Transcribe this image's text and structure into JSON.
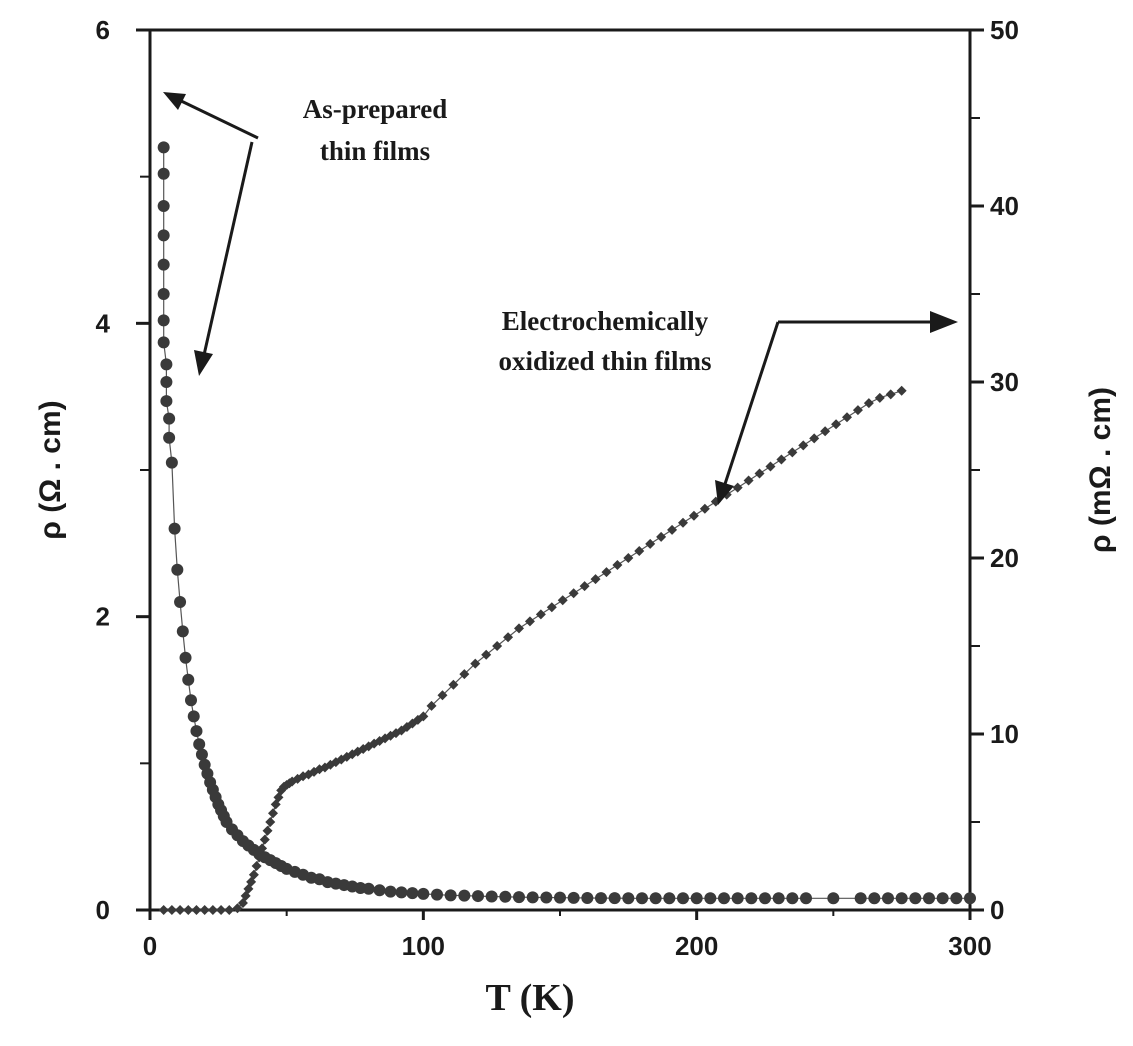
{
  "chart_data": {
    "type": "scatter",
    "xlabel": "T (K)",
    "ylabel_left": "ρ (Ω . cm)",
    "ylabel_right": "ρ (mΩ . cm)",
    "xlim": [
      0,
      300
    ],
    "ylim_left": [
      0,
      6
    ],
    "ylim_right": [
      0,
      50
    ],
    "x_ticks": [
      "0",
      "100",
      "200",
      "300"
    ],
    "y_left_ticks": [
      "0",
      "2",
      "4",
      "6"
    ],
    "y_right_ticks": [
      "0",
      "10",
      "20",
      "30",
      "40",
      "50"
    ],
    "grid": false,
    "colors": {
      "axes": "#1a1a1a",
      "markers": "#3a3a3a",
      "line": "#555555"
    },
    "annotations": [
      {
        "lines": [
          "As-prepared",
          "thin films"
        ],
        "points_to": "left axis and as-prepared curve"
      },
      {
        "lines": [
          "Electrochemically",
          "oxidized thin films"
        ],
        "points_to": "right axis and oxidized curve"
      }
    ],
    "series": [
      {
        "axis": "left",
        "marker": "circle",
        "x": [
          5,
          5,
          5,
          5,
          5,
          5,
          5,
          5,
          6,
          6,
          6,
          7,
          7,
          8,
          9,
          10,
          11,
          12,
          13,
          14,
          15,
          16,
          17,
          18,
          19,
          20,
          21,
          22,
          23,
          24,
          25,
          26,
          27,
          28,
          30,
          32,
          34,
          36,
          38,
          40,
          42,
          44,
          46,
          48,
          50,
          53,
          56,
          59,
          62,
          65,
          68,
          71,
          74,
          77,
          80,
          84,
          88,
          92,
          96,
          100,
          105,
          110,
          115,
          120,
          125,
          130,
          135,
          140,
          145,
          150,
          155,
          160,
          165,
          170,
          175,
          180,
          185,
          190,
          195,
          200,
          205,
          210,
          215,
          220,
          225,
          230,
          235,
          240,
          250,
          260,
          265,
          270,
          275,
          280,
          285,
          290,
          295,
          300
        ],
        "y": [
          5.2,
          5.02,
          4.8,
          4.6,
          4.4,
          4.2,
          4.02,
          3.87,
          3.72,
          3.6,
          3.47,
          3.35,
          3.22,
          3.05,
          2.6,
          2.32,
          2.1,
          1.9,
          1.72,
          1.57,
          1.43,
          1.32,
          1.22,
          1.13,
          1.06,
          0.99,
          0.93,
          0.87,
          0.82,
          0.77,
          0.72,
          0.68,
          0.64,
          0.6,
          0.55,
          0.51,
          0.47,
          0.44,
          0.41,
          0.38,
          0.36,
          0.34,
          0.32,
          0.3,
          0.28,
          0.26,
          0.24,
          0.22,
          0.21,
          0.19,
          0.18,
          0.17,
          0.16,
          0.15,
          0.145,
          0.135,
          0.125,
          0.12,
          0.115,
          0.11,
          0.105,
          0.1,
          0.098,
          0.095,
          0.092,
          0.09,
          0.088,
          0.086,
          0.085,
          0.084,
          0.083,
          0.082,
          0.081,
          0.081,
          0.08,
          0.08,
          0.08,
          0.08,
          0.08,
          0.08,
          0.08,
          0.08,
          0.08,
          0.08,
          0.08,
          0.08,
          0.08,
          0.08,
          0.08,
          0.08,
          0.08,
          0.08,
          0.08,
          0.08,
          0.08,
          0.08,
          0.08,
          0.08
        ]
      },
      {
        "axis": "right",
        "marker": "diamond",
        "x": [
          5,
          8,
          11,
          14,
          17,
          20,
          23,
          26,
          29,
          32,
          34,
          35,
          36,
          37,
          38,
          39,
          40,
          41,
          42,
          43,
          44,
          45,
          46,
          47,
          48,
          49,
          50,
          51,
          52,
          54,
          56,
          58,
          60,
          62,
          64,
          66,
          68,
          70,
          72,
          74,
          76,
          78,
          80,
          82,
          84,
          86,
          88,
          90,
          92,
          94,
          96,
          98,
          100,
          103,
          107,
          111,
          115,
          119,
          123,
          127,
          131,
          135,
          139,
          143,
          147,
          151,
          155,
          159,
          163,
          167,
          171,
          175,
          179,
          183,
          187,
          191,
          195,
          199,
          203,
          207,
          211,
          215,
          219,
          223,
          227,
          231,
          235,
          239,
          243,
          247,
          251,
          255,
          259,
          263,
          267,
          271,
          275
        ],
        "y": [
          0,
          0,
          0,
          0,
          0,
          0,
          0,
          0,
          0,
          0.1,
          0.4,
          0.8,
          1.2,
          1.6,
          2.0,
          2.5,
          3.0,
          3.5,
          4.0,
          4.5,
          5.0,
          5.5,
          6.0,
          6.4,
          6.8,
          7.0,
          7.1,
          7.2,
          7.3,
          7.45,
          7.6,
          7.7,
          7.85,
          8.0,
          8.1,
          8.25,
          8.4,
          8.55,
          8.7,
          8.85,
          9.0,
          9.15,
          9.3,
          9.45,
          9.6,
          9.75,
          9.9,
          10.05,
          10.2,
          10.4,
          10.6,
          10.8,
          11.0,
          11.6,
          12.2,
          12.8,
          13.4,
          14.0,
          14.5,
          15.0,
          15.5,
          16.0,
          16.4,
          16.8,
          17.2,
          17.6,
          18.0,
          18.4,
          18.8,
          19.2,
          19.6,
          20.0,
          20.4,
          20.8,
          21.2,
          21.6,
          22.0,
          22.4,
          22.8,
          23.2,
          23.6,
          24.0,
          24.4,
          24.8,
          25.2,
          25.6,
          26.0,
          26.4,
          26.8,
          27.2,
          27.6,
          28.0,
          28.4,
          28.8,
          29.1,
          29.3,
          29.5
        ]
      }
    ]
  }
}
